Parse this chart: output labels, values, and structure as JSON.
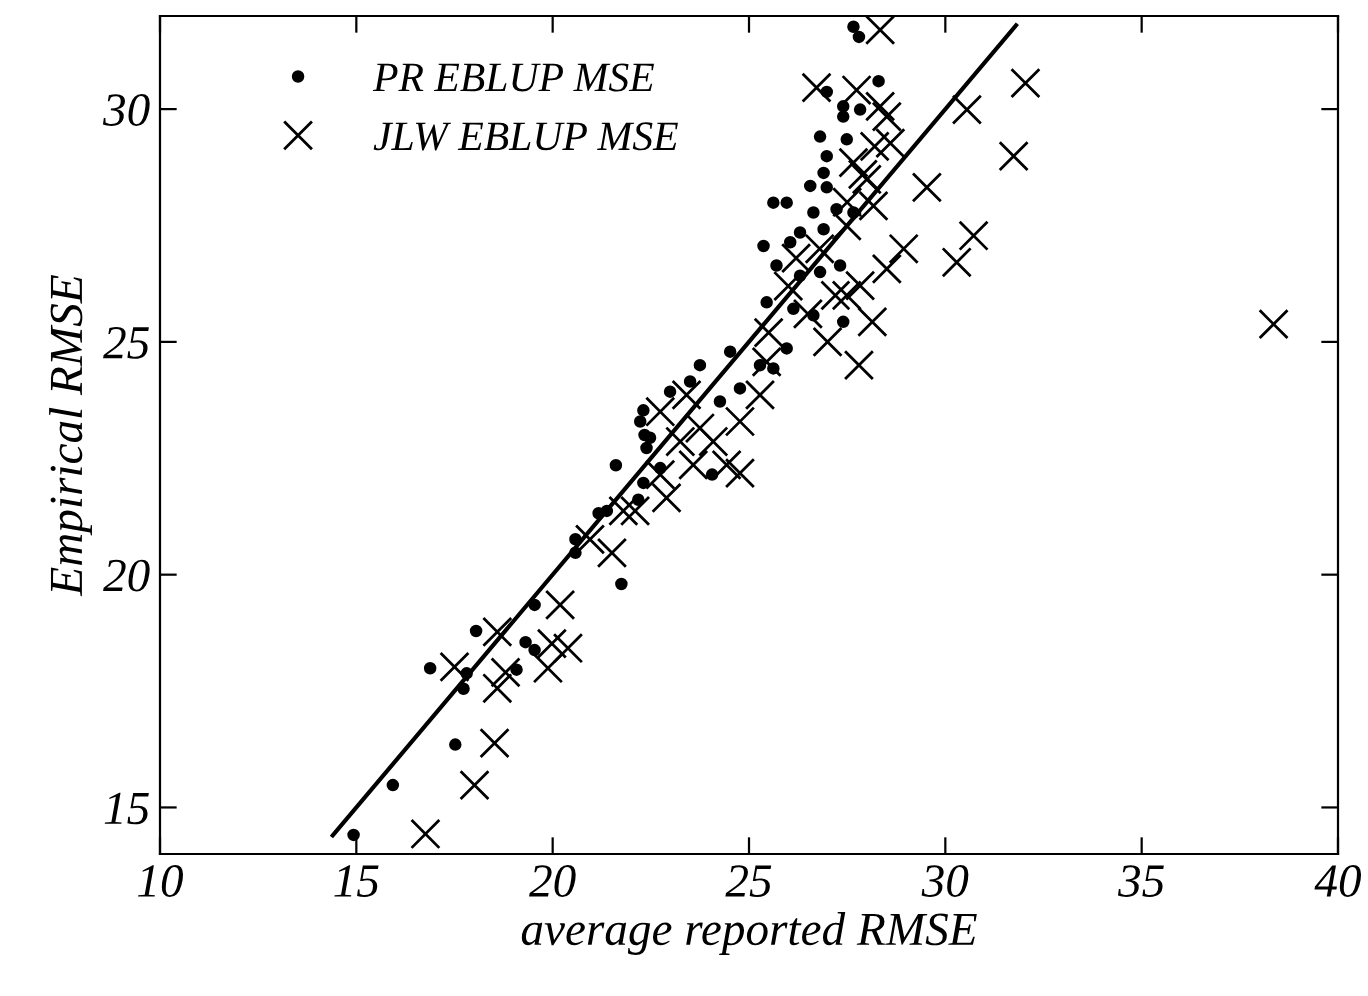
{
  "chart_data": {
    "type": "scatter",
    "xlabel": "average reported RMSE",
    "ylabel": "Empirical RMSE",
    "xlim": [
      10,
      40
    ],
    "ylim": [
      14,
      32
    ],
    "xticks": [
      10,
      15,
      20,
      25,
      30,
      35,
      40
    ],
    "yticks": [
      15,
      20,
      25,
      30
    ],
    "grid": false,
    "legend": "top left",
    "series": [
      {
        "name": "PR EBLUP MSE",
        "marker": "circle",
        "color": "#000000",
        "x": [
          14.93,
          15.93,
          17.52,
          16.88,
          17.73,
          17.81,
          18.05,
          19.08,
          19.31,
          19.54,
          19.54,
          21.75,
          20.58,
          20.58,
          21.17,
          21.38,
          21.61,
          22.18,
          22.31,
          22.39,
          22.34,
          22.31,
          22.23,
          22.48,
          22.74,
          22.99,
          23.5,
          23.75,
          24.06,
          24.26,
          24.52,
          24.77,
          25.28,
          27.66,
          27.8,
          28.3,
          26.98,
          27.4,
          27.4,
          27.83,
          26.81,
          26.98,
          26.9,
          26.56,
          26.98,
          27.49,
          26.64,
          26.9,
          26.3,
          26.05,
          25.37,
          25.62,
          25.96,
          27.23,
          27.66,
          25.7,
          26.3,
          26.81,
          27.32,
          25.45,
          26.13,
          25.96,
          27.4,
          26.64,
          25.62
        ],
        "values": [
          14.41,
          15.48,
          16.35,
          17.99,
          17.55,
          17.88,
          18.79,
          17.96,
          18.55,
          18.38,
          19.35,
          19.8,
          20.47,
          20.76,
          21.32,
          21.37,
          22.35,
          21.61,
          21.97,
          22.72,
          23.0,
          23.53,
          23.29,
          22.94,
          22.29,
          23.93,
          24.15,
          24.5,
          22.15,
          23.72,
          24.79,
          24.0,
          24.5,
          31.77,
          31.55,
          30.6,
          30.37,
          30.06,
          29.84,
          29.99,
          29.41,
          28.99,
          28.63,
          28.35,
          28.32,
          29.35,
          27.78,
          27.42,
          27.35,
          27.14,
          27.06,
          27.99,
          27.99,
          27.85,
          27.78,
          26.64,
          26.42,
          26.5,
          26.64,
          25.85,
          25.71,
          24.86,
          25.43,
          25.57,
          24.43
        ]
      },
      {
        "name": "JLW EBLUP MSE",
        "marker": "cross",
        "color": "#000000",
        "x": [
          16.76,
          18.01,
          18.52,
          17.5,
          18.59,
          18.8,
          18.59,
          20.19,
          19.88,
          19.98,
          20.39,
          21.51,
          20.95,
          21.8,
          22.1,
          22.9,
          22.74,
          24.77,
          24.43,
          23.58,
          23.25,
          22.74,
          23.41,
          23.75,
          24.09,
          24.77,
          25.45,
          25.28,
          28.34,
          26.72,
          27.74,
          28.34,
          28.51,
          30.55,
          32.04,
          31.74,
          28.6,
          29.53,
          28.0,
          28.94,
          30.72,
          30.29,
          28.51,
          27.83,
          27.49,
          28.17,
          27.66,
          38.36,
          28.14,
          27.8,
          27.49,
          27.0,
          26.5,
          26.0,
          25.5,
          27.2,
          26.8,
          26.2,
          27.5,
          27.9,
          28.2
        ],
        "values": [
          14.43,
          15.48,
          16.38,
          18.02,
          17.56,
          17.9,
          18.77,
          19.35,
          17.99,
          18.52,
          18.42,
          20.47,
          20.76,
          21.37,
          21.37,
          21.65,
          22.15,
          22.18,
          22.36,
          22.36,
          22.86,
          23.5,
          23.86,
          23.15,
          22.86,
          23.29,
          24.57,
          23.86,
          31.7,
          30.46,
          30.41,
          30.06,
          29.84,
          29.99,
          30.56,
          28.99,
          29.27,
          28.32,
          28.49,
          27.0,
          27.28,
          26.71,
          26.57,
          26.21,
          27.49,
          27.92,
          28.85,
          25.38,
          25.43,
          24.5,
          26.0,
          25.0,
          25.6,
          26.2,
          25.2,
          26.0,
          27.0,
          26.8,
          28.0,
          28.6,
          29.2
        ]
      },
      {
        "type": "line",
        "color": "#000000",
        "line_style": "solid",
        "x": [
          14.4,
          31.8
        ],
        "values": [
          14.4,
          31.8
        ]
      }
    ]
  }
}
